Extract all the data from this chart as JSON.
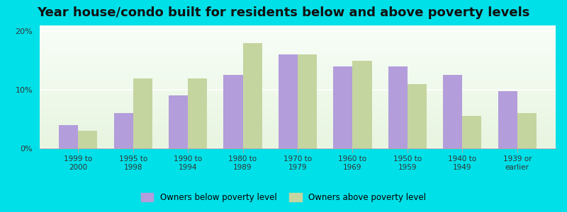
{
  "title": "Year house/condo built for residents below and above poverty levels",
  "categories": [
    "1999 to\n2000",
    "1995 to\n1998",
    "1990 to\n1994",
    "1980 to\n1989",
    "1970 to\n1979",
    "1960 to\n1969",
    "1950 to\n1959",
    "1940 to\n1949",
    "1939 or\nearlier"
  ],
  "below_poverty": [
    4.0,
    6.0,
    9.0,
    12.5,
    16.0,
    14.0,
    14.0,
    12.5,
    9.8
  ],
  "above_poverty": [
    3.0,
    12.0,
    12.0,
    18.0,
    16.0,
    15.0,
    11.0,
    5.5,
    6.0
  ],
  "below_color": "#b39ddb",
  "above_color": "#c5d5a0",
  "background_outer": "#00e0e8",
  "ylim": [
    0,
    21
  ],
  "yticks": [
    0,
    10,
    20
  ],
  "ytick_labels": [
    "0%",
    "10%",
    "20%"
  ],
  "legend_below": "Owners below poverty level",
  "legend_above": "Owners above poverty level",
  "title_fontsize": 13,
  "bar_width": 0.35
}
